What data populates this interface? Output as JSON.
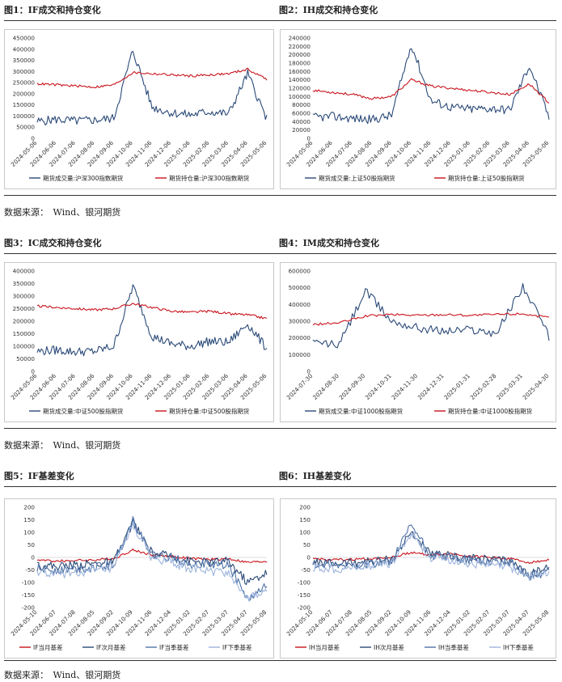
{
  "sections": [
    {
      "left_title": "图1：IF成交和持仓变化",
      "right_title": "图2：IH成交和持仓变化"
    },
    {
      "left_title": "图3：IC成交和持仓变化",
      "right_title": "图4：IM成交和持仓变化"
    },
    {
      "left_title": "图5：IF基差变化",
      "right_title": "图6：IH基差变化"
    }
  ],
  "source_text": "数据来源：　Wind、银河期货",
  "colors": {
    "dark": "#2b4a78",
    "red": "#c8141c",
    "mid": "#4f73a8",
    "light": "#9db4dc"
  },
  "chart_data": [
    {
      "type": "line",
      "ylim": [
        0,
        450000
      ],
      "yticks": [
        "0",
        "50000",
        "100000",
        "150000",
        "200000",
        "250000",
        "300000",
        "350000",
        "400000",
        "450000"
      ],
      "x": [
        "2024-05-06",
        "2024-06-06",
        "2024-07-06",
        "2024-08-06",
        "2024-09-06",
        "2024-10-06",
        "2024-11-06",
        "2024-12-06",
        "2025-01-06",
        "2025-02-06",
        "2025-03-06",
        "2025-04-06",
        "2025-05-06"
      ],
      "series": [
        {
          "name": "期货成交量:沪深300指数期货",
          "color": "dark",
          "values": [
            75000,
            85000,
            78000,
            82000,
            90000,
            395000,
            140000,
            115000,
            105000,
            120000,
            110000,
            290000,
            85000
          ]
        },
        {
          "name": "期货持仓量:沪深300指数期货",
          "color": "red",
          "values": [
            245000,
            240000,
            235000,
            230000,
            240000,
            295000,
            290000,
            285000,
            280000,
            285000,
            290000,
            310000,
            265000
          ]
        }
      ]
    },
    {
      "type": "line",
      "ylim": [
        0,
        240000
      ],
      "yticks": [
        "0",
        "20000",
        "40000",
        "60000",
        "80000",
        "100000",
        "120000",
        "140000",
        "160000",
        "180000",
        "200000",
        "220000",
        "240000"
      ],
      "x": [
        "2024-05-06",
        "2024-06-06",
        "2024-07-06",
        "2024-08-06",
        "2024-09-06",
        "2024-10-06",
        "2024-11-06",
        "2024-12-06",
        "2025-01-06",
        "2025-02-06",
        "2025-03-06",
        "2025-04-06",
        "2025-05-06"
      ],
      "series": [
        {
          "name": "期货成交量:上证50股指期货",
          "color": "dark",
          "values": [
            50000,
            52000,
            48000,
            45000,
            55000,
            225000,
            90000,
            75000,
            70000,
            72000,
            68000,
            175000,
            50000
          ]
        },
        {
          "name": "期货持仓量:上证50股指期货",
          "color": "red",
          "values": [
            115000,
            110000,
            105000,
            95000,
            100000,
            140000,
            125000,
            120000,
            115000,
            110000,
            105000,
            130000,
            85000
          ]
        }
      ]
    },
    {
      "type": "line",
      "ylim": [
        0,
        400000
      ],
      "yticks": [
        "0",
        "50000",
        "100000",
        "150000",
        "200000",
        "250000",
        "300000",
        "350000",
        "400000"
      ],
      "x": [
        "2024-05-06",
        "2024-06-06",
        "2024-07-06",
        "2024-08-06",
        "2024-09-06",
        "2024-10-06",
        "2024-11-06",
        "2024-12-06",
        "2025-01-06",
        "2025-02-06",
        "2025-03-06",
        "2025-04-06",
        "2025-05-06"
      ],
      "series": [
        {
          "name": "期货成交量:中证500股指期货",
          "color": "dark",
          "values": [
            80000,
            85000,
            78000,
            80000,
            100000,
            340000,
            140000,
            110000,
            100000,
            120000,
            115000,
            190000,
            90000
          ]
        },
        {
          "name": "期货持仓量:中证500股指期货",
          "color": "red",
          "values": [
            260000,
            255000,
            250000,
            245000,
            250000,
            270000,
            255000,
            240000,
            235000,
            240000,
            230000,
            225000,
            210000
          ]
        }
      ]
    },
    {
      "type": "line",
      "ylim": [
        0,
        600000
      ],
      "yticks": [
        "0",
        "100000",
        "200000",
        "300000",
        "400000",
        "500000",
        "600000"
      ],
      "x": [
        "2024-07-30",
        "2024-08-30",
        "2024-09-30",
        "2024-10-31",
        "2024-11-30",
        "2024-12-31",
        "2025-01-31",
        "2025-02-28",
        "2025-03-31",
        "2025-04-30"
      ],
      "series": [
        {
          "name": "期货成交量:中证1000股指期货",
          "color": "dark",
          "values": [
            170000,
            160000,
            480000,
            300000,
            260000,
            240000,
            250000,
            230000,
            510000,
            210000
          ]
        },
        {
          "name": "期货持仓量:中证1000股指期货",
          "color": "red",
          "values": [
            280000,
            290000,
            330000,
            340000,
            335000,
            340000,
            335000,
            340000,
            345000,
            320000
          ]
        }
      ]
    },
    {
      "type": "line",
      "ylim": [
        -200,
        200
      ],
      "yticks": [
        "-200",
        "-150",
        "-100",
        "-50",
        "0",
        "50",
        "100",
        "150",
        "200"
      ],
      "x": [
        "2024-05-10",
        "2024-06-07",
        "2024-07-08",
        "2024-08-05",
        "2024-09-02",
        "2024-10-09",
        "2024-11-06",
        "2024-12-04",
        "2025-01-02",
        "2025-02-07",
        "2025-03-07",
        "2025-04-07",
        "2025-05-08"
      ],
      "series": [
        {
          "name": "IF当月基差",
          "color": "red",
          "values": [
            -10,
            -15,
            -12,
            -10,
            -5,
            30,
            10,
            5,
            -5,
            -8,
            -5,
            -20,
            -15
          ]
        },
        {
          "name": "IF次月基差",
          "color": "dark",
          "values": [
            -30,
            -35,
            -30,
            -25,
            -20,
            140,
            15,
            5,
            -15,
            -20,
            -15,
            -100,
            -60
          ]
        },
        {
          "name": "IF当季基差",
          "color": "mid",
          "values": [
            -45,
            -50,
            -45,
            -40,
            -30,
            150,
            10,
            0,
            -25,
            -30,
            -30,
            -170,
            -110
          ]
        },
        {
          "name": "IF下季基差",
          "color": "light",
          "values": [
            -60,
            -70,
            -60,
            -55,
            -45,
            130,
            -5,
            -20,
            -45,
            -55,
            -60,
            -165,
            -135
          ]
        }
      ]
    },
    {
      "type": "line",
      "ylim": [
        -200,
        200
      ],
      "yticks": [
        "-200",
        "-150",
        "-100",
        "-50",
        "0",
        "50",
        "100",
        "150",
        "200"
      ],
      "x": [
        "2024-05-10",
        "2024-06-07",
        "2024-07-08",
        "2024-08-05",
        "2024-09-02",
        "2024-10-09",
        "2024-11-06",
        "2024-12-04",
        "2025-01-02",
        "2025-02-07",
        "2025-03-07",
        "2025-04-07",
        "2025-05-08"
      ],
      "series": [
        {
          "name": "IH当月基差",
          "color": "red",
          "values": [
            -5,
            -10,
            -8,
            -5,
            0,
            20,
            10,
            15,
            5,
            0,
            -5,
            -20,
            -10
          ]
        },
        {
          "name": "IH次月基差",
          "color": "dark",
          "values": [
            -20,
            -25,
            -20,
            -15,
            -10,
            100,
            10,
            5,
            -5,
            -10,
            -15,
            -70,
            -40
          ]
        },
        {
          "name": "IH当季基差",
          "color": "mid",
          "values": [
            -30,
            -35,
            -30,
            -25,
            -20,
            130,
            5,
            0,
            -10,
            -15,
            -20,
            -75,
            -55
          ]
        },
        {
          "name": "IH下季基差",
          "color": "light",
          "values": [
            -40,
            -45,
            -40,
            -30,
            -25,
            100,
            -5,
            -10,
            -25,
            -30,
            -40,
            -75,
            -65
          ]
        }
      ]
    }
  ]
}
